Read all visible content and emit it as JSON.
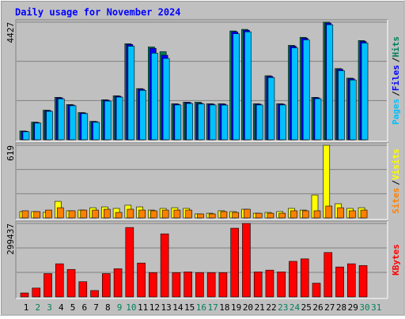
{
  "chart_data": [
    {
      "type": "bar",
      "title": "Daily usage for November 2024",
      "categories": [
        "1",
        "2",
        "3",
        "4",
        "5",
        "6",
        "7",
        "8",
        "9",
        "10",
        "11",
        "12",
        "13",
        "14",
        "15",
        "16",
        "17",
        "18",
        "19",
        "20",
        "21",
        "22",
        "23",
        "24",
        "25",
        "26",
        "27",
        "28",
        "29",
        "30",
        "31"
      ],
      "category_colors": [
        "#000000",
        "#00805c",
        "#00805c",
        "#000000",
        "#000000",
        "#000000",
        "#000000",
        "#000000",
        "#00805c",
        "#00805c",
        "#000000",
        "#000000",
        "#000000",
        "#000000",
        "#000000",
        "#00805c",
        "#00805c",
        "#000000",
        "#000000",
        "#000000",
        "#000000",
        "#000000",
        "#00805c",
        "#00805c",
        "#000000",
        "#000000",
        "#000000",
        "#000000",
        "#000000",
        "#00805c",
        "#00805c"
      ],
      "legend_separator": "/",
      "ylim": [
        0,
        4427
      ],
      "yticks": [
        4427
      ],
      "series": [
        {
          "name": "Hits",
          "color": "#00805c",
          "values": [
            331,
            663,
            1114,
            1596,
            1325,
            1024,
            693,
            1506,
            1656,
            3614,
            1927,
            3493,
            3313,
            1355,
            1415,
            1415,
            1355,
            1355,
            4096,
            4156,
            1355,
            2409,
            1355,
            3554,
            3855,
            1596,
            4427,
            2680,
            2319,
            3734,
            null
          ]
        },
        {
          "name": "Files",
          "color": "#0000ff",
          "values": [
            318,
            650,
            1098,
            1577,
            1309,
            1010,
            680,
            1489,
            1638,
            3586,
            1902,
            3441,
            3180,
            1340,
            1398,
            1370,
            1340,
            1338,
            4062,
            4120,
            1340,
            2385,
            1340,
            3520,
            3820,
            1577,
            4390,
            2655,
            2295,
            3700,
            null
          ]
        },
        {
          "name": "Pages",
          "color": "#00c0ff",
          "values": [
            301,
            628,
            1070,
            1540,
            1280,
            985,
            660,
            1455,
            1605,
            3520,
            1860,
            3260,
            3060,
            1310,
            1365,
            1345,
            1310,
            1305,
            3990,
            4060,
            1310,
            2340,
            1310,
            3460,
            3760,
            1545,
            4330,
            2600,
            2250,
            3640,
            null
          ]
        }
      ]
    },
    {
      "type": "bar",
      "ylim": [
        0,
        619
      ],
      "yticks": [
        619
      ],
      "series": [
        {
          "name": "Visits",
          "color": "#ffff00",
          "values": [
            54,
            54,
            47,
            141,
            61,
            67,
            87,
            94,
            81,
            108,
            94,
            67,
            81,
            87,
            81,
            34,
            40,
            61,
            54,
            74,
            40,
            47,
            54,
            81,
            67,
            195,
            619,
            121,
            81,
            87,
            null
          ]
        },
        {
          "name": "Sites",
          "color": "#ff8000",
          "values": [
            61,
            54,
            67,
            87,
            61,
            67,
            67,
            74,
            47,
            74,
            67,
            61,
            67,
            67,
            67,
            34,
            34,
            54,
            47,
            74,
            40,
            40,
            40,
            61,
            61,
            61,
            101,
            87,
            61,
            67,
            null
          ]
        }
      ]
    },
    {
      "type": "bar",
      "ylim": [
        0,
        299437
      ],
      "yticks": [
        299437
      ],
      "series": [
        {
          "name": "KBytes",
          "color": "#ff0000",
          "values": [
            16000,
            36000,
            95000,
            135000,
            112000,
            62000,
            26000,
            95000,
            115000,
            283000,
            138000,
            99000,
            257000,
            99000,
            102000,
            99000,
            99000,
            99000,
            280000,
            299437,
            102000,
            109000,
            102000,
            145000,
            155000,
            56000,
            181000,
            122000,
            135000,
            128000,
            null
          ]
        }
      ]
    }
  ]
}
